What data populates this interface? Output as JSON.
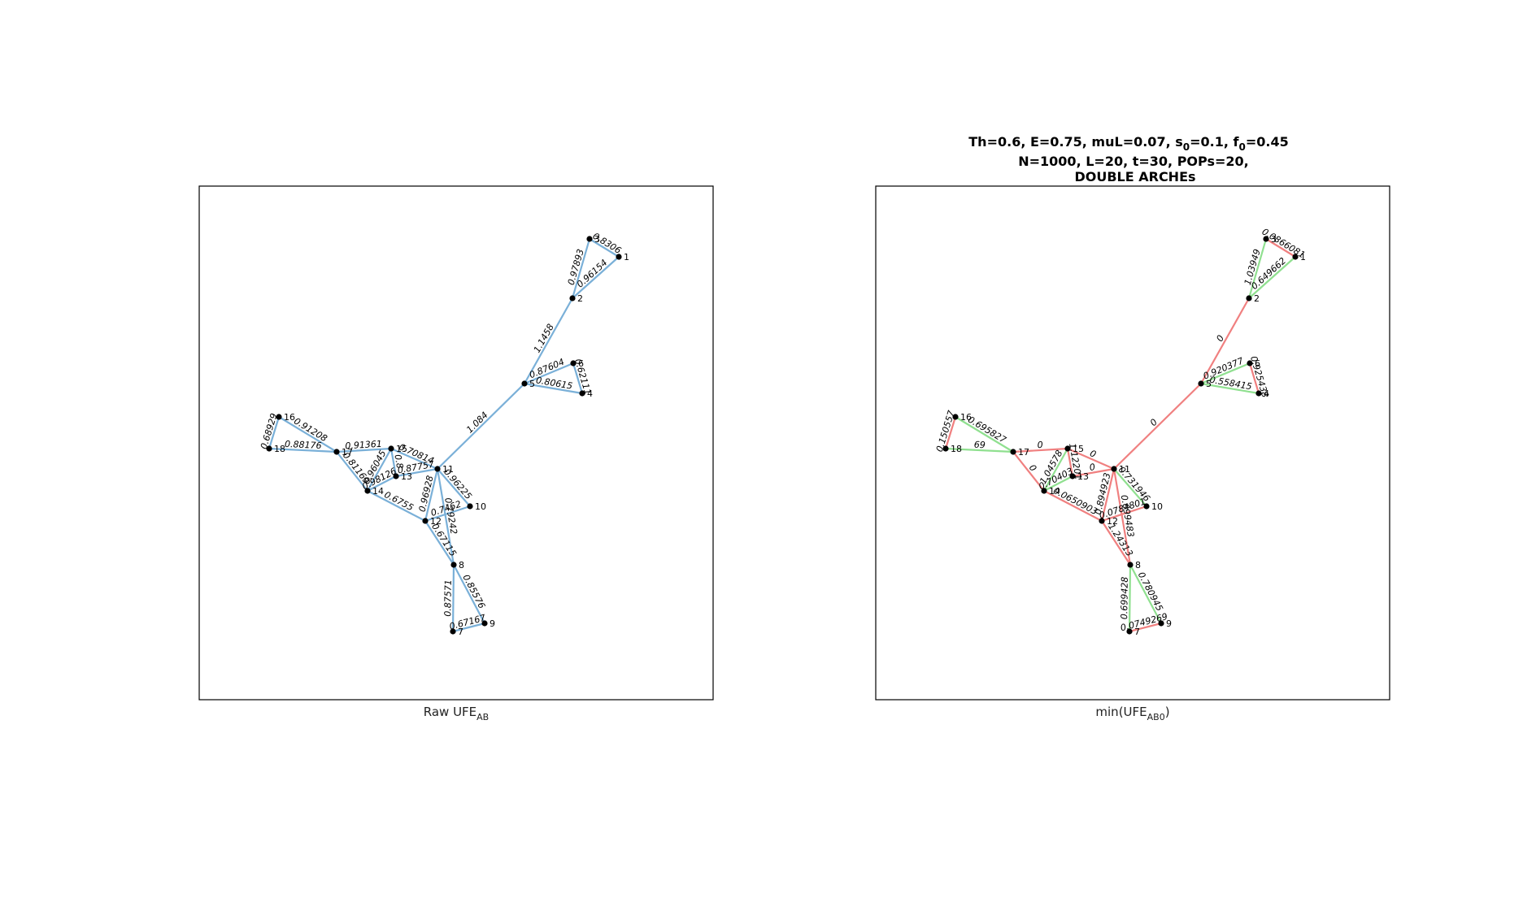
{
  "colors": {
    "raw": "#7ab0d8",
    "pos": "#90e090",
    "neg": "#f08080"
  },
  "left": {
    "xlabel_main": "Raw UFE",
    "xlabel_sub": "AB"
  },
  "right": {
    "title_line1": {
      "a": "Th=0.6, E=0.75, muL=0.07, s",
      "s0": "0",
      "b": "=0.1, f",
      "f0": "0",
      "c": "=0.45"
    },
    "title_line2": "N=1000, L=20, t=30,  POPs=20,",
    "title_line3": "DOUBLE ARCHEs",
    "xlabel_main": "min(UFE",
    "xlabel_sub": "AB0",
    "xlabel_end": ")"
  },
  "nodes": [
    {
      "id": "1",
      "label": "1"
    },
    {
      "id": "2",
      "label": "2"
    },
    {
      "id": "3",
      "label": "3"
    },
    {
      "id": "4",
      "label": "4"
    },
    {
      "id": "5",
      "label": "5"
    },
    {
      "id": "6",
      "label": "6"
    },
    {
      "id": "7",
      "label": "7"
    },
    {
      "id": "8",
      "label": "8"
    },
    {
      "id": "9",
      "label": "9"
    },
    {
      "id": "10",
      "label": "10"
    },
    {
      "id": "11",
      "label": "11"
    },
    {
      "id": "12",
      "label": "12"
    },
    {
      "id": "13",
      "label": "13"
    },
    {
      "id": "14",
      "label": "14"
    },
    {
      "id": "15",
      "label": "15"
    },
    {
      "id": "16",
      "label": "16"
    },
    {
      "id": "17",
      "label": "17"
    },
    {
      "id": "18",
      "label": "18"
    }
  ],
  "left_edges": [
    {
      "s": "3",
      "t": "1",
      "w": "0.8306"
    },
    {
      "s": "3",
      "t": "2",
      "w": "0.97893"
    },
    {
      "s": "1",
      "t": "2",
      "w": "0.96154"
    },
    {
      "s": "2",
      "t": "5",
      "w": "1.1458"
    },
    {
      "s": "5",
      "t": "6",
      "w": "0.87604"
    },
    {
      "s": "6",
      "t": "4",
      "w": "0.62111"
    },
    {
      "s": "5",
      "t": "4",
      "w": "0.80615"
    },
    {
      "s": "5",
      "t": "11",
      "w": "1.084"
    },
    {
      "s": "16",
      "t": "17",
      "w": "0.91208"
    },
    {
      "s": "16",
      "t": "18",
      "w": "0.68929"
    },
    {
      "s": "18",
      "t": "17",
      "w": "0.88176"
    },
    {
      "s": "17",
      "t": "15",
      "w": "0.91361"
    },
    {
      "s": "17",
      "t": "14",
      "w": "0.81169"
    },
    {
      "s": "14",
      "t": "15",
      "w": "0.96045"
    },
    {
      "s": "14",
      "t": "13",
      "w": "0.98126"
    },
    {
      "s": "15",
      "t": "13",
      "w": "0.8"
    },
    {
      "s": "15",
      "t": "11",
      "w": "0.70814"
    },
    {
      "s": "13",
      "t": "11",
      "w": "0.87757"
    },
    {
      "s": "14",
      "t": "12",
      "w": "0.6755"
    },
    {
      "s": "12",
      "t": "11",
      "w": "0.96928"
    },
    {
      "s": "11",
      "t": "10",
      "w": "0.96225"
    },
    {
      "s": "12",
      "t": "10",
      "w": "0.7462"
    },
    {
      "s": "11",
      "t": "8",
      "w": "0.79242"
    },
    {
      "s": "12",
      "t": "8",
      "w": "0.67115"
    },
    {
      "s": "8",
      "t": "7",
      "w": "0.87571"
    },
    {
      "s": "8",
      "t": "9",
      "w": "0.85576"
    },
    {
      "s": "7",
      "t": "9",
      "w": "0.67167"
    }
  ],
  "right_edges": [
    {
      "s": "3",
      "t": "1",
      "w": "0.0866081",
      "c": "neg"
    },
    {
      "s": "3",
      "t": "2",
      "w": "1.03949",
      "c": "pos"
    },
    {
      "s": "1",
      "t": "2",
      "w": "0.649662",
      "c": "pos"
    },
    {
      "s": "2",
      "t": "5",
      "w": "0",
      "c": "neg"
    },
    {
      "s": "5",
      "t": "6",
      "w": "0.920377",
      "c": "pos"
    },
    {
      "s": "6",
      "t": "4",
      "w": "0.925438",
      "c": "neg"
    },
    {
      "s": "5",
      "t": "4",
      "w": "0.558415",
      "c": "pos"
    },
    {
      "s": "5",
      "t": "11",
      "w": "0",
      "c": "neg"
    },
    {
      "s": "16",
      "t": "17",
      "w": "0.695827",
      "c": "pos"
    },
    {
      "s": "16",
      "t": "18",
      "w": "0.150557",
      "c": "neg"
    },
    {
      "s": "18",
      "t": "17",
      "w": "69",
      "c": "pos"
    },
    {
      "s": "17",
      "t": "15",
      "w": "0",
      "c": "neg"
    },
    {
      "s": "17",
      "t": "14",
      "w": "0",
      "c": "neg"
    },
    {
      "s": "14",
      "t": "15",
      "w": "1.04578",
      "c": "pos"
    },
    {
      "s": "14",
      "t": "13",
      "w": "0.70403",
      "c": "pos"
    },
    {
      "s": "15",
      "t": "13",
      "w": "1.12201",
      "c": "neg"
    },
    {
      "s": "15",
      "t": "11",
      "w": "0",
      "c": "neg"
    },
    {
      "s": "13",
      "t": "11",
      "w": "0",
      "c": "neg"
    },
    {
      "s": "14",
      "t": "12",
      "w": "0.0650903",
      "c": "neg"
    },
    {
      "s": "12",
      "t": "11",
      "w": "0.894923",
      "c": "neg"
    },
    {
      "s": "11",
      "t": "10",
      "w": "0.731946",
      "c": "pos"
    },
    {
      "s": "12",
      "t": "10",
      "w": "0.0784801",
      "c": "neg"
    },
    {
      "s": "11",
      "t": "8",
      "w": "0.699483",
      "c": "neg"
    },
    {
      "s": "12",
      "t": "8",
      "w": "1.24313",
      "c": "neg"
    },
    {
      "s": "8",
      "t": "7",
      "w": "0.699428",
      "c": "pos"
    },
    {
      "s": "8",
      "t": "9",
      "w": "0.780945",
      "c": "pos"
    },
    {
      "s": "7",
      "t": "9",
      "w": "0.0749269",
      "c": "neg"
    }
  ]
}
